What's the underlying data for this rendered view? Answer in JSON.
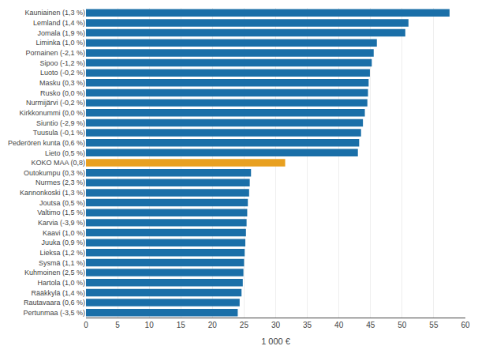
{
  "chart_data": {
    "type": "bar",
    "orientation": "horizontal",
    "categories": [
      "Kauniainen (1,3 %)",
      "Lemland (1,4 %)",
      "Jomala (1,9 %)",
      "Liminka (1,0 %)",
      "Pornainen (-2,1 %)",
      "Sipoo (-1,2 %)",
      "Luoto (-0,2 %)",
      "Masku (0,3 %)",
      "Rusko (0,0 %)",
      "Nurmijärvi (-0,2 %)",
      "Kirkkonummi (0,0 %)",
      "Siuntio (-2,9 %)",
      "Tuusula (-0,1 %)",
      "Pederören kunta (0,6 %)",
      "Lieto (0,5 %)",
      "KOKO MAA (0,8)",
      "Outokumpu (0,3 %)",
      "Nurmes (2,3 %)",
      "Kannonkoski (1,3 %)",
      "Joutsa (0,5 %)",
      "Valtimo (1,5 %)",
      "Karvia (-3,9 %)",
      "Kaavi (1,0 %)",
      "Juuka (0,9 %)",
      "Lieksa (1,2 %)",
      "Sysmä (1,1 %)",
      "Kuhmoinen (2,5 %)",
      "Hartola (1,0 %)",
      "Rääkkylä (1,4 %)",
      "Rautavaara (0,6 %)",
      "Pertunmaa (-3,5 %)"
    ],
    "values": [
      57.5,
      51.0,
      50.5,
      46.0,
      45.5,
      45.2,
      44.9,
      44.7,
      44.6,
      44.5,
      44.1,
      43.8,
      43.5,
      43.2,
      43.0,
      31.5,
      26.1,
      25.9,
      25.8,
      25.6,
      25.5,
      25.4,
      25.3,
      25.2,
      25.1,
      25.0,
      24.9,
      24.8,
      24.6,
      24.3,
      24.0
    ],
    "colors": [
      "#1a6fa8",
      "#1a6fa8",
      "#1a6fa8",
      "#1a6fa8",
      "#1a6fa8",
      "#1a6fa8",
      "#1a6fa8",
      "#1a6fa8",
      "#1a6fa8",
      "#1a6fa8",
      "#1a6fa8",
      "#1a6fa8",
      "#1a6fa8",
      "#1a6fa8",
      "#1a6fa8",
      "#e8a020",
      "#1a6fa8",
      "#1a6fa8",
      "#1a6fa8",
      "#1a6fa8",
      "#1a6fa8",
      "#1a6fa8",
      "#1a6fa8",
      "#1a6fa8",
      "#1a6fa8",
      "#1a6fa8",
      "#1a6fa8",
      "#1a6fa8",
      "#1a6fa8",
      "#1a6fa8",
      "#1a6fa8"
    ],
    "xlabel": "1 000 €",
    "xlim": [
      0,
      60
    ],
    "xticks": [
      0,
      5,
      10,
      15,
      20,
      25,
      30,
      35,
      40,
      45,
      50,
      55,
      60
    ],
    "grid": true
  }
}
